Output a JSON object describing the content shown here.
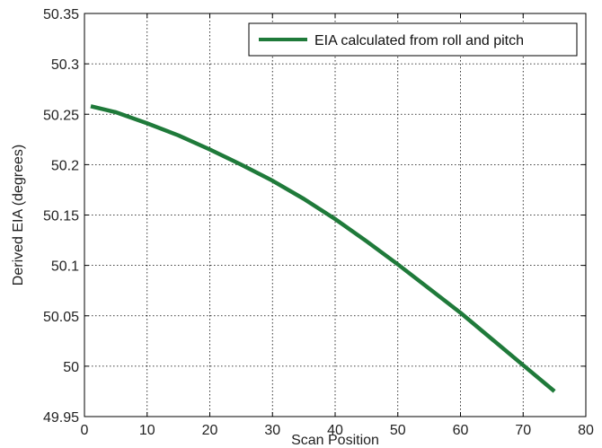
{
  "chart_data": {
    "type": "line",
    "title": "",
    "xlabel": "Scan Position",
    "ylabel": "Derived EIA (degrees)",
    "xlim": [
      0,
      80
    ],
    "ylim": [
      49.95,
      50.35
    ],
    "x_ticks": [
      0,
      10,
      20,
      30,
      40,
      50,
      60,
      70,
      80
    ],
    "y_ticks": [
      49.95,
      50,
      50.05,
      50.1,
      50.15,
      50.2,
      50.25,
      50.3,
      50.35
    ],
    "x_tick_labels": [
      "0",
      "10",
      "20",
      "30",
      "40",
      "50",
      "60",
      "70",
      "80"
    ],
    "y_tick_labels": [
      "49.95",
      "50",
      "50.05",
      "50.1",
      "50.15",
      "50.2",
      "50.25",
      "50.3",
      "50.35"
    ],
    "grid": true,
    "grid_style": "dotted",
    "legend_position": "top-right",
    "series": [
      {
        "name": "EIA calculated from roll and pitch",
        "color": "#1f7a3a",
        "x": [
          1,
          5,
          10,
          15,
          20,
          25,
          30,
          35,
          40,
          45,
          50,
          55,
          60,
          65,
          70,
          75
        ],
        "y": [
          50.258,
          50.252,
          50.241,
          50.229,
          50.215,
          50.2,
          50.184,
          50.166,
          50.146,
          50.124,
          50.101,
          50.077,
          50.053,
          50.027,
          50.001,
          49.975
        ]
      }
    ]
  }
}
